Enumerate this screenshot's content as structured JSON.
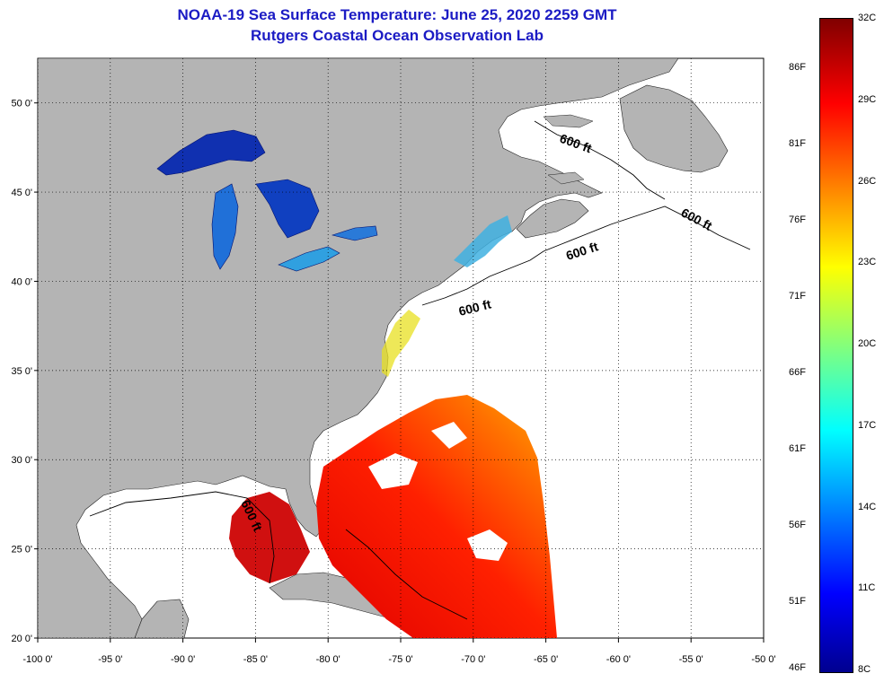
{
  "title_line1": "NOAA-19 Sea Surface Temperature:  June 25, 2020 2259 GMT",
  "title_line2": "Rutgers Coastal Ocean Observation Lab",
  "map": {
    "lon_range": [
      -100,
      -50
    ],
    "lat_range": [
      20,
      52.5
    ],
    "lon_ticks": [
      {
        "value": -100,
        "label": "-100 0'"
      },
      {
        "value": -95,
        "label": "-95 0'"
      },
      {
        "value": -90,
        "label": "-90 0'"
      },
      {
        "value": -85,
        "label": "-85 0'"
      },
      {
        "value": -80,
        "label": "-80 0'"
      },
      {
        "value": -75,
        "label": "-75 0'"
      },
      {
        "value": -70,
        "label": "-70 0'"
      },
      {
        "value": -65,
        "label": "-65 0'"
      },
      {
        "value": -60,
        "label": "-60 0'"
      },
      {
        "value": -55,
        "label": "-55 0'"
      },
      {
        "value": -50,
        "label": "-50 0'"
      }
    ],
    "lat_ticks": [
      {
        "value": 50,
        "label": "50 0'"
      },
      {
        "value": 45,
        "label": "45 0'"
      },
      {
        "value": 40,
        "label": "40 0'"
      },
      {
        "value": 35,
        "label": "35 0'"
      },
      {
        "value": 30,
        "label": "30 0'"
      },
      {
        "value": 25,
        "label": "25 0'"
      },
      {
        "value": 20,
        "label": "20 0'"
      }
    ],
    "grid": "dotted",
    "land_color": "#b4b4b4",
    "no_data_color": "#ffffff",
    "contour_label": "600 ft"
  },
  "colorbar": {
    "min_c": 8,
    "max_c": 32,
    "celsius_labels": [
      "32C",
      "29C",
      "26C",
      "23C",
      "20C",
      "17C",
      "14C",
      "11C",
      "8C"
    ],
    "fahrenheit_labels": [
      "86F",
      "81F",
      "76F",
      "71F",
      "66F",
      "61F",
      "56F",
      "51F",
      "46F"
    ],
    "colormap": "jet"
  }
}
